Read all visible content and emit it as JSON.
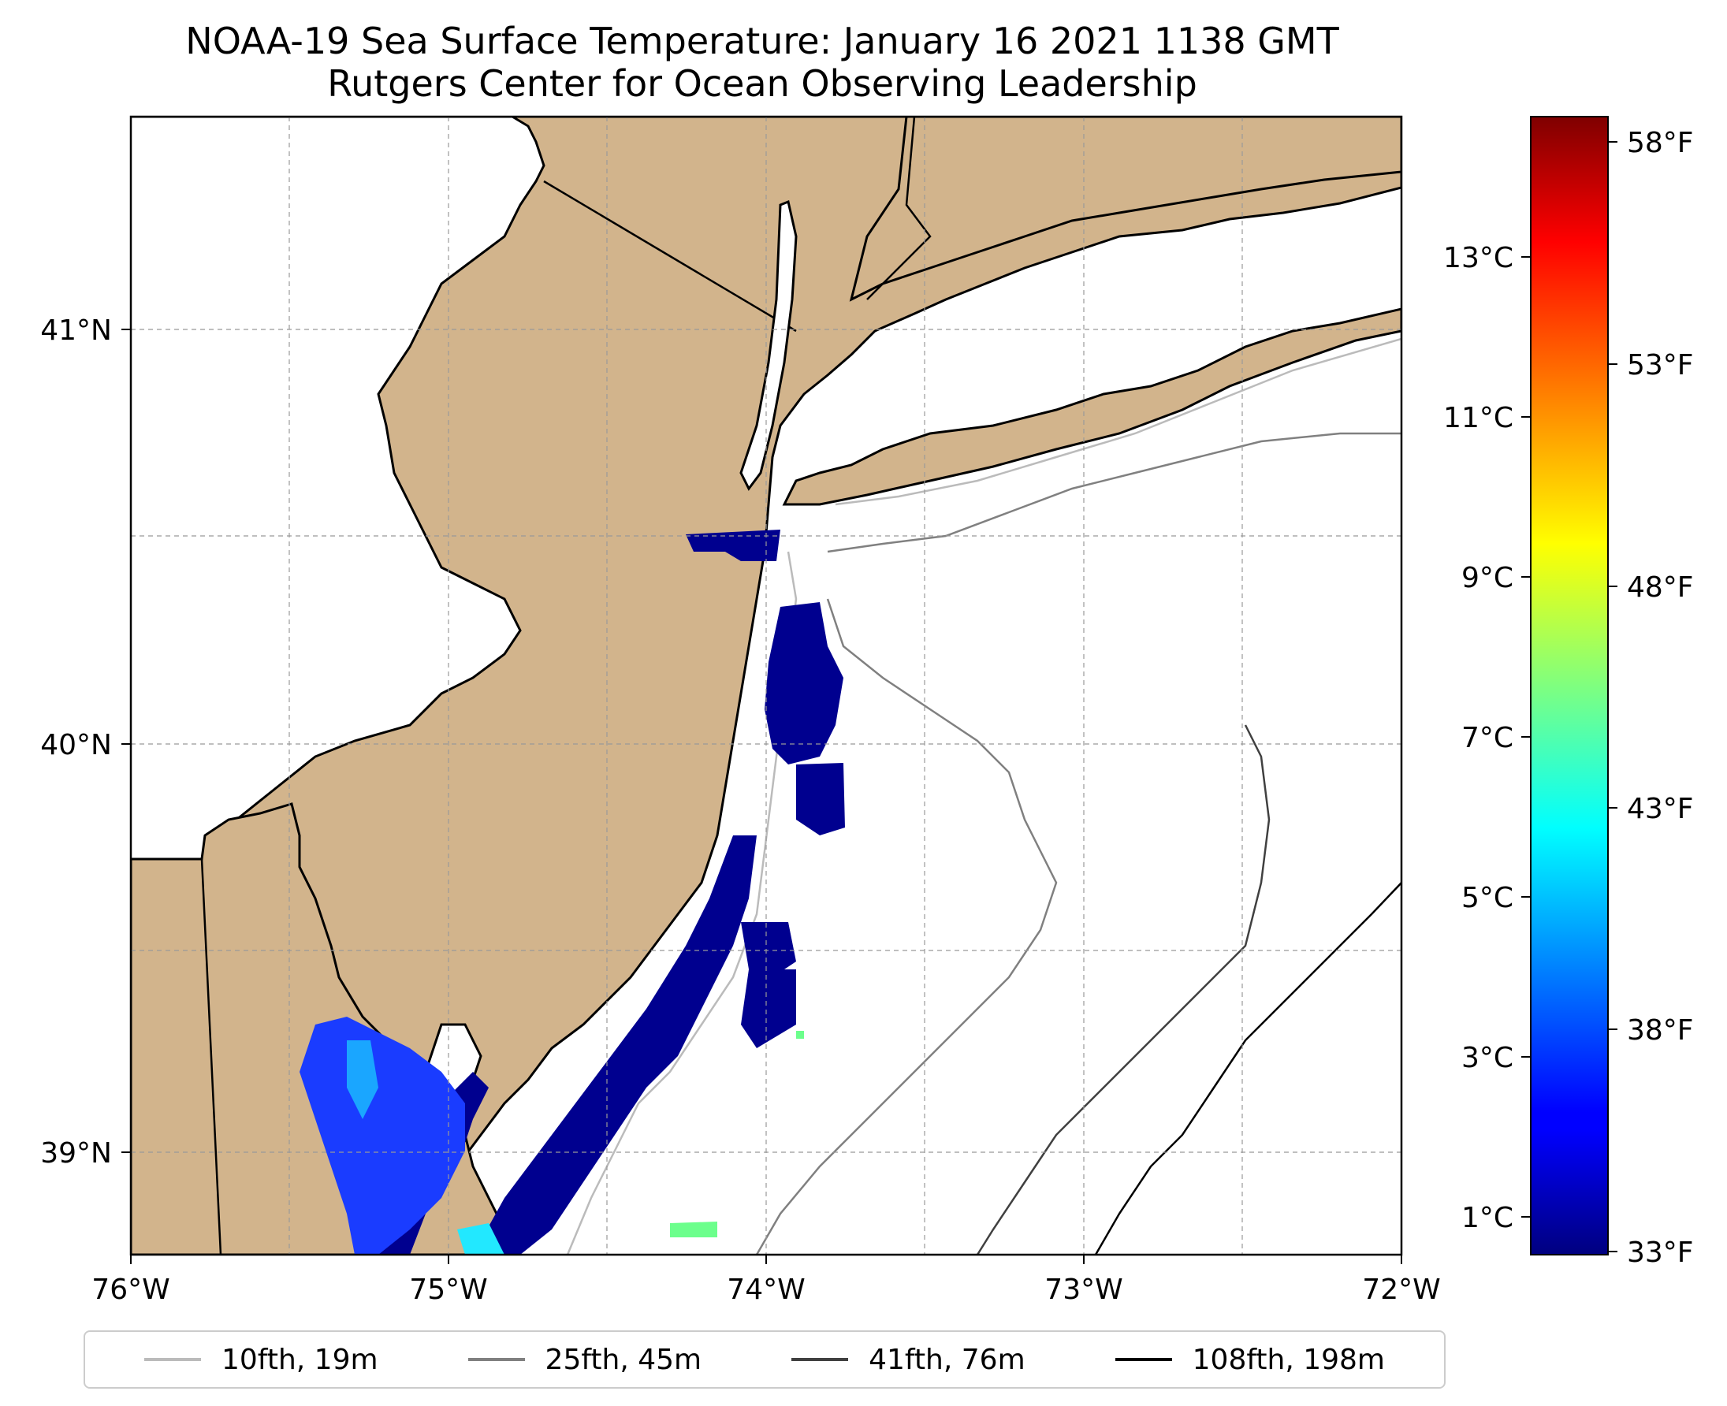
{
  "title": {
    "line1": "NOAA-19 Sea Surface Temperature: January 16 2021 1138 GMT",
    "line2": "Rutgers Center for Ocean Observing Leadership"
  },
  "map": {
    "lon_range": [
      -76,
      -72
    ],
    "lat_range": [
      38.7,
      41.5
    ],
    "x_ticks": [
      "76°W",
      "75°W",
      "74°W",
      "73°W",
      "72°W"
    ],
    "y_ticks": [
      "41°N",
      "40°N",
      "39°N"
    ],
    "grid": true,
    "land_color": "#d2b48c",
    "ocean_color": "#ffffff"
  },
  "colorbar": {
    "colormap": "jet",
    "celsius_ticks": [
      "13°C",
      "11°C",
      "9°C",
      "7°C",
      "5°C",
      "3°C",
      "1°C"
    ],
    "fahrenheit_ticks": [
      "58°F",
      "53°F",
      "48°F",
      "43°F",
      "38°F",
      "33°F"
    ]
  },
  "legend": {
    "placement": "bottom",
    "items": [
      {
        "label": "10fth, 19m",
        "color": "#bbbbbb"
      },
      {
        "label": "25fth, 45m",
        "color": "#808080"
      },
      {
        "label": "41fth, 76m",
        "color": "#404040"
      },
      {
        "label": "108fth, 198m",
        "color": "#000000"
      }
    ]
  }
}
